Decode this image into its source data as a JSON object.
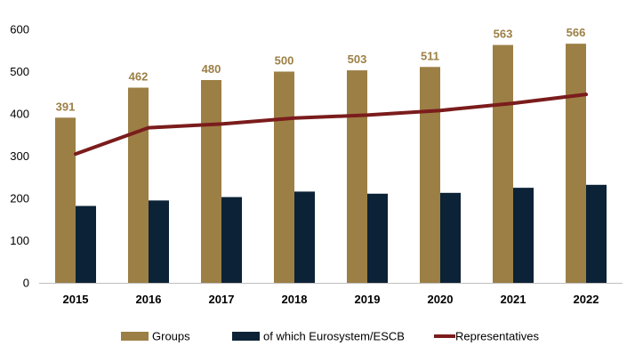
{
  "chart_data": {
    "type": "bar",
    "categories": [
      "2015",
      "2016",
      "2017",
      "2018",
      "2019",
      "2020",
      "2021",
      "2022"
    ],
    "series": [
      {
        "name": "Groups",
        "type": "bar",
        "color": "#9c7f45",
        "values": [
          391,
          462,
          480,
          500,
          503,
          511,
          563,
          566
        ],
        "data_labels": true
      },
      {
        "name": "of which Eurosystem/ESCB",
        "type": "bar",
        "color": "#0b2237",
        "values": [
          182,
          195,
          203,
          216,
          211,
          213,
          225,
          232
        ],
        "data_labels": false
      },
      {
        "name": "Representatives",
        "type": "line",
        "color": "#7b1c1c",
        "values": [
          305,
          367,
          376,
          390,
          397,
          408,
          425,
          446
        ],
        "data_labels": false
      }
    ],
    "yticks": [
      "0",
      "100",
      "200",
      "300",
      "400",
      "500",
      "600"
    ],
    "ylim": [
      0,
      600
    ],
    "grid": false,
    "legend_position": "bottom",
    "data_label_color": "#9c7f45"
  }
}
